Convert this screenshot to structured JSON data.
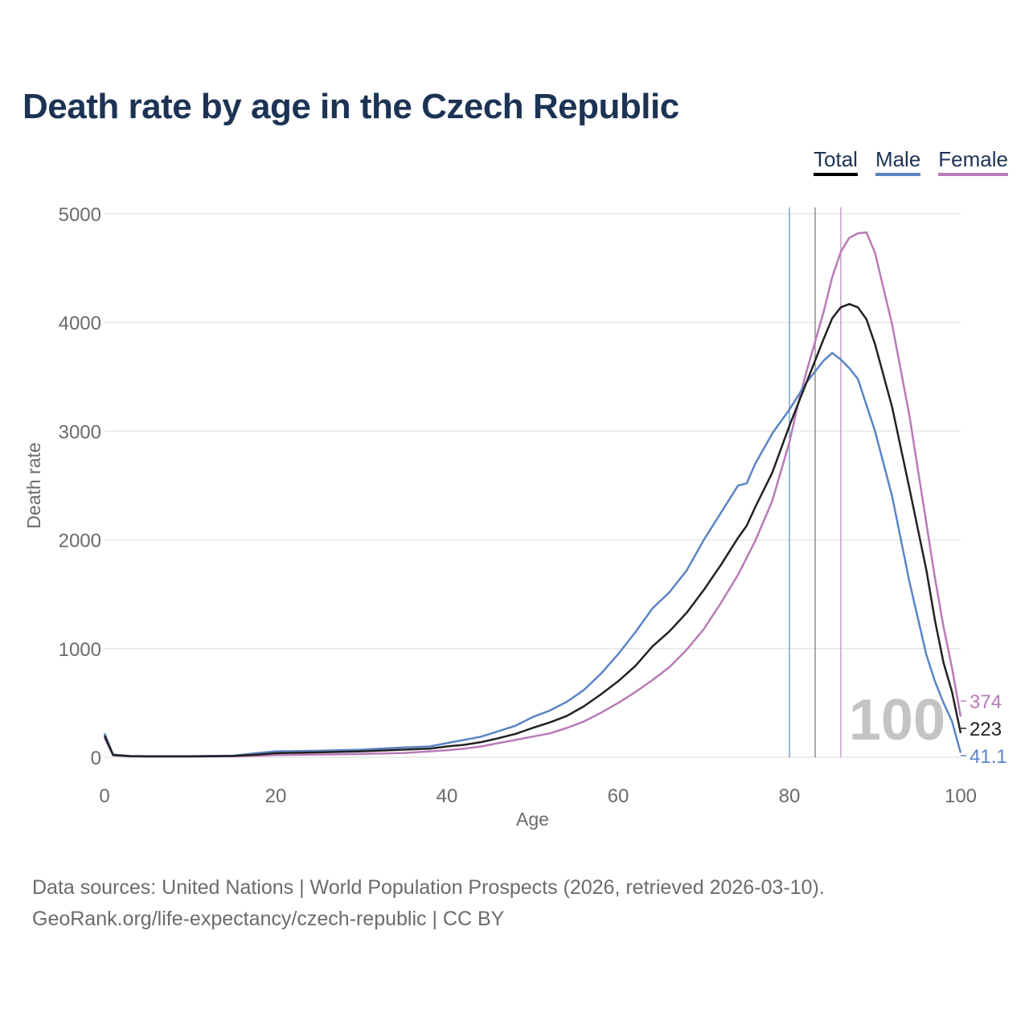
{
  "title": "Death rate by age in the Czech Republic",
  "legend": {
    "total": "Total",
    "male": "Male",
    "female": "Female"
  },
  "colors": {
    "total": "#222222",
    "male": "#5b84c4",
    "female": "#b97ab8",
    "title": "#1c3354",
    "grid": "#e6e6e6",
    "axis_text": "#6b6b6b",
    "watermark": "#c4c4c4"
  },
  "footer": {
    "line1": "Data sources: United Nations | World Population Prospects (2026, retrieved 2026-03-10).",
    "line2": "GeoRank.org/life-expectancy/czech-republic | CC BY"
  },
  "chart_data": {
    "type": "line",
    "title": "Death rate by age in the Czech Republic",
    "xlabel": "Age",
    "ylabel": "Death rate",
    "xlim": [
      0,
      100
    ],
    "ylim": [
      0,
      5000
    ],
    "x_ticks": [
      0,
      20,
      40,
      60,
      80,
      100
    ],
    "y_ticks": [
      0,
      1000,
      2000,
      3000,
      4000,
      5000
    ],
    "grid": true,
    "legend_position": "top-right",
    "year_label": "100",
    "vertical_markers": [
      {
        "name": "Male",
        "x": 80
      },
      {
        "name": "Total",
        "x": 83
      },
      {
        "name": "Female",
        "x": 86
      }
    ],
    "end_labels": {
      "female": "374",
      "total": "223",
      "male": "41.1"
    },
    "series": [
      {
        "key": "total",
        "name": "Total",
        "points": [
          [
            0,
            200
          ],
          [
            1,
            20
          ],
          [
            3,
            10
          ],
          [
            5,
            8
          ],
          [
            10,
            8
          ],
          [
            15,
            12
          ],
          [
            18,
            25
          ],
          [
            20,
            38
          ],
          [
            25,
            45
          ],
          [
            30,
            55
          ],
          [
            35,
            70
          ],
          [
            38,
            80
          ],
          [
            40,
            100
          ],
          [
            42,
            115
          ],
          [
            44,
            140
          ],
          [
            46,
            175
          ],
          [
            48,
            215
          ],
          [
            50,
            270
          ],
          [
            52,
            320
          ],
          [
            54,
            380
          ],
          [
            56,
            470
          ],
          [
            58,
            580
          ],
          [
            60,
            700
          ],
          [
            62,
            840
          ],
          [
            64,
            1020
          ],
          [
            66,
            1160
          ],
          [
            68,
            1330
          ],
          [
            70,
            1540
          ],
          [
            72,
            1770
          ],
          [
            74,
            2020
          ],
          [
            75,
            2130
          ],
          [
            76,
            2300
          ],
          [
            78,
            2620
          ],
          [
            80,
            3050
          ],
          [
            82,
            3450
          ],
          [
            84,
            3850
          ],
          [
            85,
            4040
          ],
          [
            86,
            4140
          ],
          [
            87,
            4170
          ],
          [
            88,
            4140
          ],
          [
            89,
            4030
          ],
          [
            90,
            3800
          ],
          [
            92,
            3220
          ],
          [
            94,
            2480
          ],
          [
            96,
            1720
          ],
          [
            97,
            1260
          ],
          [
            98,
            870
          ],
          [
            99,
            600
          ],
          [
            100,
            223
          ]
        ]
      },
      {
        "key": "male",
        "name": "Male",
        "points": [
          [
            0,
            220
          ],
          [
            1,
            25
          ],
          [
            3,
            12
          ],
          [
            5,
            10
          ],
          [
            10,
            10
          ],
          [
            15,
            15
          ],
          [
            18,
            40
          ],
          [
            20,
            55
          ],
          [
            25,
            60
          ],
          [
            30,
            70
          ],
          [
            35,
            90
          ],
          [
            38,
            100
          ],
          [
            40,
            130
          ],
          [
            42,
            160
          ],
          [
            44,
            190
          ],
          [
            46,
            240
          ],
          [
            48,
            290
          ],
          [
            50,
            370
          ],
          [
            52,
            430
          ],
          [
            54,
            510
          ],
          [
            56,
            620
          ],
          [
            58,
            770
          ],
          [
            60,
            950
          ],
          [
            62,
            1150
          ],
          [
            64,
            1370
          ],
          [
            66,
            1520
          ],
          [
            68,
            1720
          ],
          [
            70,
            2000
          ],
          [
            72,
            2250
          ],
          [
            74,
            2500
          ],
          [
            75,
            2520
          ],
          [
            76,
            2700
          ],
          [
            78,
            2980
          ],
          [
            80,
            3200
          ],
          [
            82,
            3450
          ],
          [
            84,
            3650
          ],
          [
            85,
            3720
          ],
          [
            86,
            3660
          ],
          [
            87,
            3580
          ],
          [
            88,
            3480
          ],
          [
            90,
            3000
          ],
          [
            92,
            2400
          ],
          [
            94,
            1620
          ],
          [
            96,
            940
          ],
          [
            97,
            700
          ],
          [
            98,
            500
          ],
          [
            99,
            330
          ],
          [
            100,
            41.1
          ]
        ]
      },
      {
        "key": "female",
        "name": "Female",
        "points": [
          [
            0,
            180
          ],
          [
            1,
            18
          ],
          [
            3,
            8
          ],
          [
            5,
            7
          ],
          [
            10,
            7
          ],
          [
            15,
            9
          ],
          [
            18,
            15
          ],
          [
            20,
            20
          ],
          [
            25,
            25
          ],
          [
            30,
            30
          ],
          [
            35,
            40
          ],
          [
            38,
            55
          ],
          [
            40,
            65
          ],
          [
            42,
            80
          ],
          [
            44,
            100
          ],
          [
            46,
            130
          ],
          [
            48,
            160
          ],
          [
            50,
            190
          ],
          [
            52,
            220
          ],
          [
            54,
            270
          ],
          [
            56,
            330
          ],
          [
            58,
            410
          ],
          [
            60,
            500
          ],
          [
            62,
            600
          ],
          [
            64,
            710
          ],
          [
            66,
            830
          ],
          [
            68,
            990
          ],
          [
            70,
            1180
          ],
          [
            72,
            1420
          ],
          [
            74,
            1680
          ],
          [
            76,
            1990
          ],
          [
            78,
            2360
          ],
          [
            80,
            2900
          ],
          [
            81,
            3250
          ],
          [
            82,
            3550
          ],
          [
            84,
            4100
          ],
          [
            85,
            4420
          ],
          [
            86,
            4650
          ],
          [
            87,
            4780
          ],
          [
            88,
            4820
          ],
          [
            89,
            4830
          ],
          [
            90,
            4640
          ],
          [
            92,
            3980
          ],
          [
            94,
            3150
          ],
          [
            96,
            2150
          ],
          [
            97,
            1650
          ],
          [
            98,
            1200
          ],
          [
            99,
            820
          ],
          [
            100,
            374
          ]
        ]
      }
    ]
  }
}
